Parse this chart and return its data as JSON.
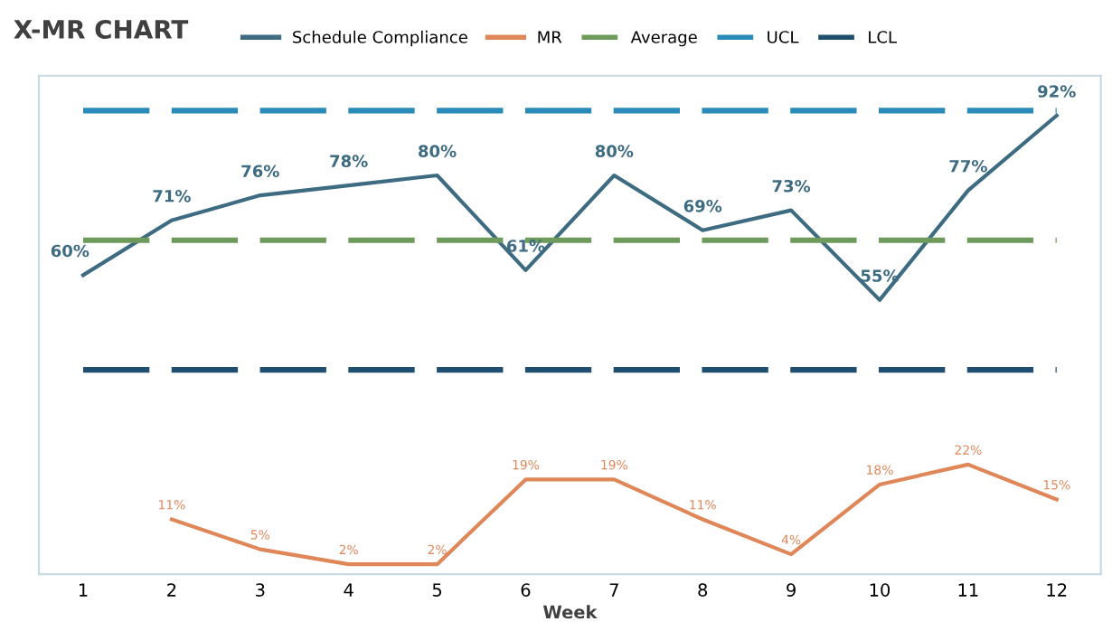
{
  "chart_data": {
    "type": "line",
    "title": "X-MR CHART",
    "xlabel": "Week",
    "categories": [
      "1",
      "2",
      "3",
      "4",
      "5",
      "6",
      "7",
      "8",
      "9",
      "10",
      "11",
      "12"
    ],
    "ylim": [
      0,
      100
    ],
    "tick_labels": "x",
    "grid": false,
    "legend": "top",
    "series": [
      {
        "name": "Schedule Compliance",
        "color": "#3d6b82",
        "values": [
          60,
          71,
          76,
          78,
          80,
          61,
          80,
          69,
          73,
          55,
          77,
          92
        ],
        "value_labels": [
          "60%",
          "71%",
          "76%",
          "78%",
          "80%",
          "61%",
          "80%",
          "69%",
          "73%",
          "55%",
          "77%",
          "92%"
        ],
        "line_style": "solid"
      },
      {
        "name": "MR",
        "color": "#e0875a",
        "values": [
          null,
          11,
          5,
          2,
          2,
          19,
          19,
          11,
          4,
          18,
          22,
          15
        ],
        "value_labels": [
          null,
          "11%",
          "5%",
          "2%",
          "2%",
          "19%",
          "19%",
          "11%",
          "4%",
          "18%",
          "22%",
          "15%"
        ],
        "line_style": "solid"
      },
      {
        "name": "Average",
        "color": "#6e9a5c",
        "values": [
          67,
          67,
          67,
          67,
          67,
          67,
          67,
          67,
          67,
          67,
          67,
          67
        ],
        "line_style": "dashed"
      },
      {
        "name": "UCL",
        "color": "#2b8bb8",
        "values": [
          93,
          93,
          93,
          93,
          93,
          93,
          93,
          93,
          93,
          93,
          93,
          93
        ],
        "line_style": "dashed"
      },
      {
        "name": "LCL",
        "color": "#1f4e6e",
        "values": [
          41,
          41,
          41,
          41,
          41,
          41,
          41,
          41,
          41,
          41,
          41,
          41
        ],
        "line_style": "dashed"
      }
    ]
  }
}
